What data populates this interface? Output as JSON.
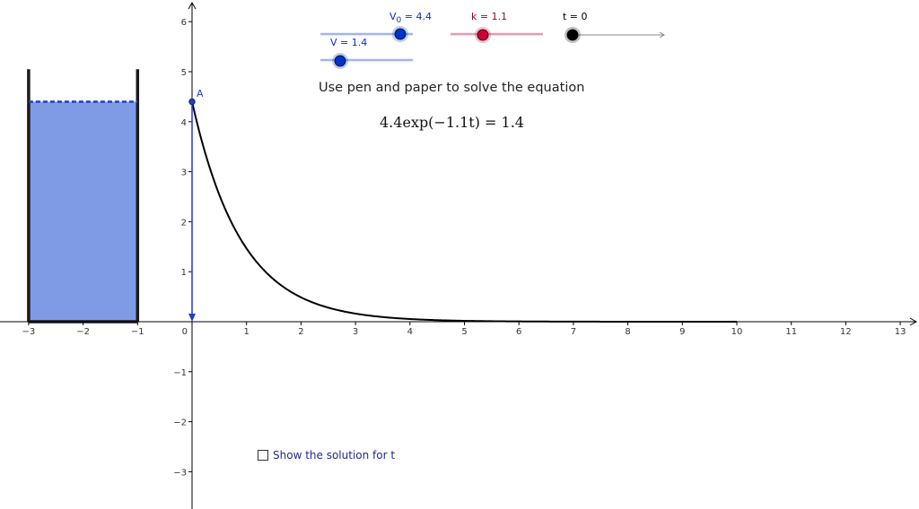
{
  "colors": {
    "tank_fill": "#7f9be6",
    "tank_outline": "#1a1a1a",
    "water_level_line": "#1f3fbf",
    "curve": "#000000",
    "point_A": "#1f3fbf",
    "slider_blue": "#0033cc",
    "slider_blue_track": "#9fb6ee",
    "slider_red": "#cc0033",
    "slider_red_track": "#e99aae",
    "slider_black": "#000000",
    "slider_black_track": "#888888",
    "label_red": "#a00030"
  },
  "sliders": {
    "v0": {
      "label_main": "V",
      "label_sub": "0",
      "label_rest": " = 4.4",
      "value": 4.4
    },
    "k": {
      "label": "k = 1.1",
      "value": 1.1
    },
    "t": {
      "label": "t = 0",
      "value": 0
    },
    "v": {
      "label": "V = 1.4",
      "value": 1.4
    }
  },
  "instruction": "Use pen and paper to solve the equation",
  "equation": "4.4exp(−1.1t) = 1.4",
  "point_label": "A",
  "checkbox": {
    "label": "Show the solution for t",
    "checked": false
  },
  "graph": {
    "x_ticks": [
      "−3",
      "−2",
      "−1",
      "0",
      "1",
      "2",
      "3",
      "4",
      "5",
      "6",
      "7",
      "8",
      "9",
      "10",
      "11",
      "12",
      "13"
    ],
    "y_ticks_pos": [
      "1",
      "2",
      "3",
      "4",
      "5",
      "6"
    ],
    "y_ticks_neg": [
      "−1",
      "−2",
      "−3"
    ],
    "curve": {
      "V0": 4.4,
      "k": 1.1,
      "t_min": 0,
      "t_max": 10
    },
    "tank": {
      "x_left": -3,
      "x_right": -1,
      "wall_top": 5.05,
      "water_level": 4.4
    },
    "point_A": {
      "x": 0,
      "y": 4.4
    }
  }
}
